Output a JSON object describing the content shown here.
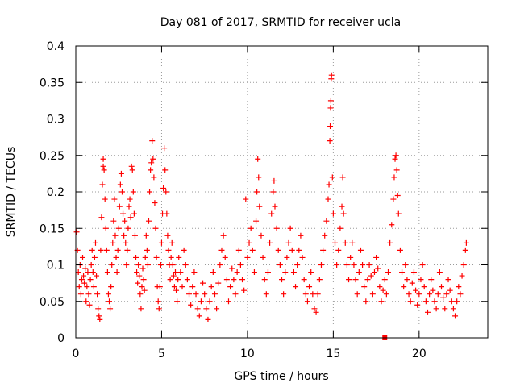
{
  "chart_data": {
    "type": "scatter",
    "title": "Day 081 of 2017, SRMTID for receiver ucla",
    "xlabel": "GPS time / hours",
    "ylabel": "SRMTID / TECUs",
    "xlim": [
      0,
      24
    ],
    "ylim": [
      0,
      0.4
    ],
    "x_ticks": [
      0,
      5,
      10,
      15,
      20
    ],
    "x_tick_labels": [
      "0",
      "5",
      "10",
      "15",
      "20"
    ],
    "y_ticks": [
      0,
      0.05,
      0.1,
      0.15,
      0.2,
      0.25,
      0.3,
      0.35,
      0.4
    ],
    "y_tick_labels": [
      "0",
      "0.05",
      "0.1",
      "0.15",
      "0.2",
      "0.25",
      "0.3",
      "0.35",
      "0.4"
    ],
    "grid": true,
    "marker": "plus",
    "color": "#ff0000",
    "series": [
      {
        "name": "SRMTID",
        "points": [
          [
            0.05,
            0.145
          ],
          [
            0.1,
            0.12
          ],
          [
            0.15,
            0.09
          ],
          [
            0.2,
            0.07
          ],
          [
            0.25,
            0.1
          ],
          [
            0.3,
            0.06
          ],
          [
            0.35,
            0.08
          ],
          [
            0.4,
            0.11
          ],
          [
            0.45,
            0.085
          ],
          [
            0.5,
            0.075
          ],
          [
            0.55,
            0.095
          ],
          [
            0.6,
            0.05
          ],
          [
            0.65,
            0.07
          ],
          [
            0.7,
            0.09
          ],
          [
            0.75,
            0.06
          ],
          [
            0.8,
            0.045
          ],
          [
            0.85,
            0.08
          ],
          [
            0.9,
            0.1
          ],
          [
            0.95,
            0.12
          ],
          [
            1.0,
            0.09
          ],
          [
            1.05,
            0.07
          ],
          [
            1.1,
            0.11
          ],
          [
            1.15,
            0.13
          ],
          [
            1.2,
            0.085
          ],
          [
            1.25,
            0.06
          ],
          [
            1.3,
            0.04
          ],
          [
            1.35,
            0.03
          ],
          [
            1.4,
            0.025
          ],
          [
            1.45,
            0.12
          ],
          [
            1.5,
            0.165
          ],
          [
            1.55,
            0.21
          ],
          [
            1.6,
            0.245
          ],
          [
            1.6,
            0.235
          ],
          [
            1.65,
            0.23
          ],
          [
            1.7,
            0.19
          ],
          [
            1.75,
            0.15
          ],
          [
            1.8,
            0.12
          ],
          [
            1.85,
            0.09
          ],
          [
            1.9,
            0.06
          ],
          [
            1.95,
            0.05
          ],
          [
            2.0,
            0.04
          ],
          [
            2.05,
            0.07
          ],
          [
            2.1,
            0.1
          ],
          [
            2.15,
            0.13
          ],
          [
            2.2,
            0.16
          ],
          [
            2.25,
            0.19
          ],
          [
            2.3,
            0.14
          ],
          [
            2.35,
            0.11
          ],
          [
            2.4,
            0.09
          ],
          [
            2.45,
            0.12
          ],
          [
            2.5,
            0.15
          ],
          [
            2.55,
            0.18
          ],
          [
            2.6,
            0.21
          ],
          [
            2.65,
            0.225
          ],
          [
            2.7,
            0.2
          ],
          [
            2.75,
            0.17
          ],
          [
            2.8,
            0.14
          ],
          [
            2.85,
            0.16
          ],
          [
            2.9,
            0.13
          ],
          [
            2.95,
            0.1
          ],
          [
            3.0,
            0.12
          ],
          [
            3.05,
            0.15
          ],
          [
            3.1,
            0.18
          ],
          [
            3.15,
            0.19
          ],
          [
            3.2,
            0.165
          ],
          [
            3.25,
            0.235
          ],
          [
            3.3,
            0.23
          ],
          [
            3.35,
            0.2
          ],
          [
            3.4,
            0.17
          ],
          [
            3.45,
            0.14
          ],
          [
            3.5,
            0.11
          ],
          [
            3.55,
            0.09
          ],
          [
            3.6,
            0.075
          ],
          [
            3.65,
            0.1
          ],
          [
            3.7,
            0.085
          ],
          [
            3.75,
            0.06
          ],
          [
            3.8,
            0.04
          ],
          [
            3.85,
            0.07
          ],
          [
            3.9,
            0.095
          ],
          [
            3.95,
            0.08
          ],
          [
            4.0,
            0.065
          ],
          [
            4.05,
            0.11
          ],
          [
            4.1,
            0.14
          ],
          [
            4.15,
            0.12
          ],
          [
            4.2,
            0.1
          ],
          [
            4.25,
            0.16
          ],
          [
            4.3,
            0.2
          ],
          [
            4.35,
            0.23
          ],
          [
            4.4,
            0.24
          ],
          [
            4.45,
            0.27
          ],
          [
            4.5,
            0.245
          ],
          [
            4.55,
            0.22
          ],
          [
            4.6,
            0.185
          ],
          [
            4.65,
            0.15
          ],
          [
            4.7,
            0.11
          ],
          [
            4.75,
            0.07
          ],
          [
            4.8,
            0.05
          ],
          [
            4.85,
            0.04
          ],
          [
            4.9,
            0.07
          ],
          [
            4.95,
            0.1
          ],
          [
            5.0,
            0.13
          ],
          [
            5.05,
            0.17
          ],
          [
            5.1,
            0.205
          ],
          [
            5.15,
            0.26
          ],
          [
            5.2,
            0.23
          ],
          [
            5.25,
            0.2
          ],
          [
            5.3,
            0.17
          ],
          [
            5.35,
            0.14
          ],
          [
            5.4,
            0.12
          ],
          [
            5.45,
            0.1
          ],
          [
            5.5,
            0.08
          ],
          [
            5.55,
            0.11
          ],
          [
            5.6,
            0.13
          ],
          [
            5.65,
            0.1
          ],
          [
            5.7,
            0.085
          ],
          [
            5.75,
            0.07
          ],
          [
            5.8,
            0.09
          ],
          [
            5.85,
            0.065
          ],
          [
            5.9,
            0.05
          ],
          [
            5.95,
            0.08
          ],
          [
            6.0,
            0.11
          ],
          [
            6.1,
            0.09
          ],
          [
            6.2,
            0.07
          ],
          [
            6.3,
            0.12
          ],
          [
            6.4,
            0.1
          ],
          [
            6.5,
            0.08
          ],
          [
            6.6,
            0.06
          ],
          [
            6.7,
            0.045
          ],
          [
            6.8,
            0.07
          ],
          [
            6.9,
            0.09
          ],
          [
            7.0,
            0.06
          ],
          [
            7.1,
            0.04
          ],
          [
            7.2,
            0.03
          ],
          [
            7.3,
            0.05
          ],
          [
            7.4,
            0.075
          ],
          [
            7.5,
            0.06
          ],
          [
            7.6,
            0.04
          ],
          [
            7.7,
            0.025
          ],
          [
            7.8,
            0.05
          ],
          [
            7.9,
            0.07
          ],
          [
            8.0,
            0.09
          ],
          [
            8.1,
            0.06
          ],
          [
            8.2,
            0.04
          ],
          [
            8.3,
            0.075
          ],
          [
            8.4,
            0.1
          ],
          [
            8.5,
            0.12
          ],
          [
            8.6,
            0.14
          ],
          [
            8.7,
            0.11
          ],
          [
            8.8,
            0.08
          ],
          [
            8.9,
            0.05
          ],
          [
            9.0,
            0.07
          ],
          [
            9.1,
            0.095
          ],
          [
            9.2,
            0.08
          ],
          [
            9.3,
            0.06
          ],
          [
            9.4,
            0.09
          ],
          [
            9.5,
            0.12
          ],
          [
            9.6,
            0.1
          ],
          [
            9.7,
            0.08
          ],
          [
            9.8,
            0.065
          ],
          [
            9.9,
            0.19
          ],
          [
            10.0,
            0.11
          ],
          [
            10.1,
            0.13
          ],
          [
            10.2,
            0.15
          ],
          [
            10.3,
            0.12
          ],
          [
            10.4,
            0.09
          ],
          [
            10.5,
            0.16
          ],
          [
            10.55,
            0.2
          ],
          [
            10.6,
            0.245
          ],
          [
            10.65,
            0.22
          ],
          [
            10.7,
            0.18
          ],
          [
            10.8,
            0.14
          ],
          [
            10.9,
            0.11
          ],
          [
            11.0,
            0.08
          ],
          [
            11.1,
            0.06
          ],
          [
            11.2,
            0.09
          ],
          [
            11.3,
            0.13
          ],
          [
            11.4,
            0.17
          ],
          [
            11.5,
            0.2
          ],
          [
            11.55,
            0.215
          ],
          [
            11.6,
            0.18
          ],
          [
            11.7,
            0.15
          ],
          [
            11.8,
            0.12
          ],
          [
            11.9,
            0.1
          ],
          [
            12.0,
            0.08
          ],
          [
            12.1,
            0.06
          ],
          [
            12.2,
            0.09
          ],
          [
            12.3,
            0.11
          ],
          [
            12.4,
            0.13
          ],
          [
            12.5,
            0.15
          ],
          [
            12.6,
            0.12
          ],
          [
            12.7,
            0.09
          ],
          [
            12.8,
            0.07
          ],
          [
            12.9,
            0.1
          ],
          [
            13.0,
            0.12
          ],
          [
            13.1,
            0.14
          ],
          [
            13.2,
            0.11
          ],
          [
            13.3,
            0.08
          ],
          [
            13.4,
            0.06
          ],
          [
            13.5,
            0.05
          ],
          [
            13.6,
            0.07
          ],
          [
            13.7,
            0.09
          ],
          [
            13.8,
            0.06
          ],
          [
            13.9,
            0.04
          ],
          [
            14.0,
            0.035
          ],
          [
            14.1,
            0.06
          ],
          [
            14.2,
            0.08
          ],
          [
            14.3,
            0.1
          ],
          [
            14.4,
            0.12
          ],
          [
            14.5,
            0.14
          ],
          [
            14.6,
            0.16
          ],
          [
            14.7,
            0.19
          ],
          [
            14.75,
            0.21
          ],
          [
            14.8,
            0.27
          ],
          [
            14.82,
            0.29
          ],
          [
            14.84,
            0.315
          ],
          [
            14.86,
            0.325
          ],
          [
            14.88,
            0.355
          ],
          [
            14.9,
            0.36
          ],
          [
            14.95,
            0.22
          ],
          [
            15.0,
            0.17
          ],
          [
            15.1,
            0.13
          ],
          [
            15.2,
            0.1
          ],
          [
            15.3,
            0.12
          ],
          [
            15.4,
            0.15
          ],
          [
            15.5,
            0.18
          ],
          [
            15.55,
            0.22
          ],
          [
            15.6,
            0.17
          ],
          [
            15.7,
            0.13
          ],
          [
            15.8,
            0.1
          ],
          [
            15.9,
            0.08
          ],
          [
            16.0,
            0.11
          ],
          [
            16.1,
            0.13
          ],
          [
            16.2,
            0.1
          ],
          [
            16.3,
            0.08
          ],
          [
            16.4,
            0.06
          ],
          [
            16.5,
            0.09
          ],
          [
            16.6,
            0.12
          ],
          [
            16.7,
            0.1
          ],
          [
            16.8,
            0.07
          ],
          [
            16.9,
            0.05
          ],
          [
            17.0,
            0.08
          ],
          [
            17.1,
            0.1
          ],
          [
            17.2,
            0.085
          ],
          [
            17.3,
            0.06
          ],
          [
            17.4,
            0.09
          ],
          [
            17.5,
            0.11
          ],
          [
            17.6,
            0.095
          ],
          [
            17.7,
            0.07
          ],
          [
            17.8,
            0.05
          ],
          [
            17.9,
            0.065
          ],
          [
            18.0,
            0.08
          ],
          [
            18.1,
            0.06
          ],
          [
            18.2,
            0.09
          ],
          [
            18.3,
            0.13
          ],
          [
            18.4,
            0.155
          ],
          [
            18.5,
            0.19
          ],
          [
            18.55,
            0.22
          ],
          [
            18.6,
            0.245
          ],
          [
            18.65,
            0.25
          ],
          [
            18.7,
            0.23
          ],
          [
            18.75,
            0.195
          ],
          [
            18.8,
            0.17
          ],
          [
            18.9,
            0.12
          ],
          [
            19.0,
            0.09
          ],
          [
            19.1,
            0.07
          ],
          [
            19.2,
            0.1
          ],
          [
            19.3,
            0.08
          ],
          [
            19.4,
            0.06
          ],
          [
            19.5,
            0.05
          ],
          [
            19.6,
            0.075
          ],
          [
            19.7,
            0.09
          ],
          [
            19.8,
            0.065
          ],
          [
            19.9,
            0.045
          ],
          [
            20.0,
            0.06
          ],
          [
            20.1,
            0.08
          ],
          [
            20.2,
            0.1
          ],
          [
            20.3,
            0.07
          ],
          [
            20.4,
            0.05
          ],
          [
            20.5,
            0.035
          ],
          [
            20.6,
            0.06
          ],
          [
            20.7,
            0.08
          ],
          [
            20.8,
            0.065
          ],
          [
            20.9,
            0.05
          ],
          [
            21.0,
            0.04
          ],
          [
            21.1,
            0.06
          ],
          [
            21.2,
            0.09
          ],
          [
            21.3,
            0.07
          ],
          [
            21.4,
            0.055
          ],
          [
            21.5,
            0.04
          ],
          [
            21.6,
            0.06
          ],
          [
            21.7,
            0.08
          ],
          [
            21.8,
            0.065
          ],
          [
            21.9,
            0.05
          ],
          [
            22.0,
            0.04
          ],
          [
            22.1,
            0.03
          ],
          [
            22.2,
            0.05
          ],
          [
            22.3,
            0.07
          ],
          [
            22.4,
            0.06
          ],
          [
            22.5,
            0.085
          ],
          [
            22.6,
            0.1
          ],
          [
            22.7,
            0.12
          ],
          [
            22.75,
            0.13
          ],
          [
            18.0,
            0.0
          ]
        ]
      }
    ]
  }
}
